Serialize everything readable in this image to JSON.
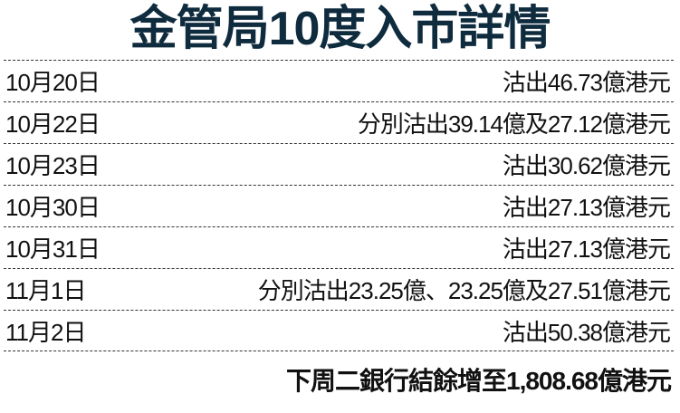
{
  "title": "金管局10度入市詳情",
  "rows": [
    {
      "date": "10月20日",
      "detail": "沽出46.73億港元"
    },
    {
      "date": "10月22日",
      "detail": "分別沽出39.14億及27.12億港元"
    },
    {
      "date": "10月23日",
      "detail": "沽出30.62億港元"
    },
    {
      "date": "10月30日",
      "detail": "沽出27.13億港元"
    },
    {
      "date": "10月31日",
      "detail": "沽出27.13億港元"
    },
    {
      "date": "11月1日",
      "detail": "分別沽出23.25億、23.25億及27.51億港元"
    },
    {
      "date": "11月2日",
      "detail": "沽出50.38億港元"
    }
  ],
  "summary": "下周二銀行結餘增至1,808.68億港元",
  "colors": {
    "title": "#0f2b3e"
  }
}
